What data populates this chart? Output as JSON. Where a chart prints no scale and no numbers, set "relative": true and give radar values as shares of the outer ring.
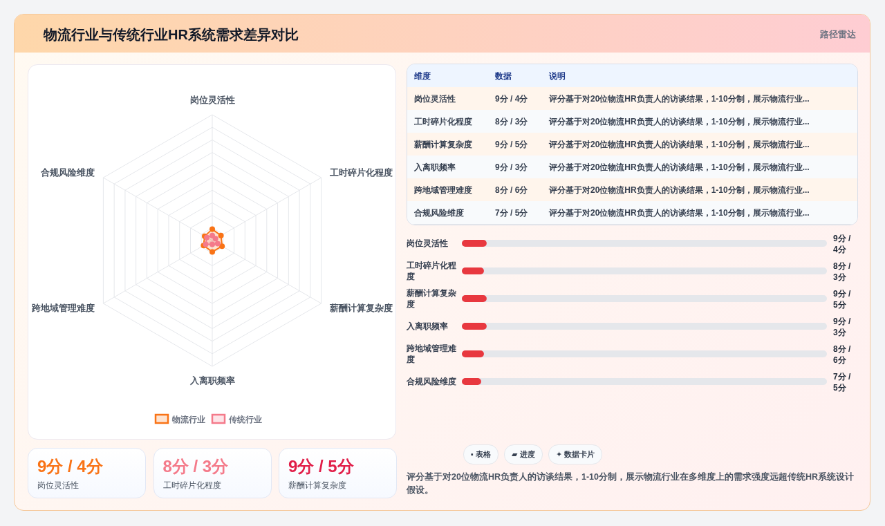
{
  "chart_data": [
    {
      "type": "other",
      "title": "物流行业与传统行业HR系统需求差异对比",
      "annotations": [
        "路径雷达"
      ]
    },
    {
      "type": "radar",
      "categories": [
        "岗位灵活性",
        "工时碎片化程度",
        "薪酬计算复杂度",
        "入离职频率",
        "跨地域管理难度",
        "合规风险维度"
      ],
      "relative": true,
      "legend": "bottom",
      "marker": "circle",
      "series": [
        {
          "name": "物流行业",
          "color": "#f97316",
          "values": [
            0.09,
            0.08,
            0.09,
            0.09,
            0.08,
            0.07
          ]
        },
        {
          "name": "传统行业",
          "color": "#f47a8a",
          "values": [
            0.04,
            0.03,
            0.05,
            0.03,
            0.06,
            0.05
          ]
        }
      ]
    },
    {
      "type": "other",
      "annotations": [
        "维度",
        "数据",
        "说明",
        "岗位灵活性",
        "9分 / 4分",
        "评分基于对20位物流HR负责人的访谈结果，1-10分制，展示物流行业...",
        "工时碎片化程度",
        "8分 / 3分",
        "评分基于对20位物流HR负责人的访谈结果，1-10分制，展示物流行业...",
        "薪酬计算复杂度",
        "9分 / 5分",
        "评分基于对20位物流HR负责人的访谈结果，1-10分制，展示物流行业...",
        "入离职频率",
        "9分 / 3分",
        "评分基于对20位物流HR负责人的访谈结果，1-10分制，展示物流行业...",
        "跨地域管理难度",
        "8分 / 6分",
        "评分基于对20位物流HR负责人的访谈结果，1-10分制，展示物流行业...",
        "合规风险维度",
        "7分 / 5分",
        "评分基于对20位物流HR负责人的访谈结果，1-10分制，展示物流行业..."
      ]
    },
    {
      "type": "bar",
      "orientation": "horizontal",
      "categories": [
        "岗位灵活性",
        "工时碎片化程度",
        "薪酬计算复杂度",
        "入离职频率",
        "跨地域管理难度",
        "合规风险维度"
      ],
      "color": "#e8383f",
      "values": [
        9,
        8,
        9,
        9,
        8,
        7
      ],
      "value_labels": [
        "9分 / 4分",
        "8分 / 3分",
        "9分 / 5分",
        "9分 / 3分",
        "8分 / 6分",
        "7分 / 5分"
      ]
    },
    {
      "type": "other",
      "annotations": [
        "9分 / 4分",
        "岗位灵活性",
        "8分 / 3分",
        "工时碎片化程度",
        "9分 / 5分",
        "薪酬计算复杂度"
      ],
      "colors": [
        "#f97316",
        "#f47a8a",
        "#e11d48"
      ]
    },
    {
      "type": "other",
      "annotations": [
        "▪ 表格",
        "▰ 进度",
        "✦ 数据卡片",
        "评分基于对20位物流HR负责人的访谈结果，1-10分制，展示物流行业在多维度上的需求强度远超传统HR系统设计假设。"
      ]
    }
  ]
}
